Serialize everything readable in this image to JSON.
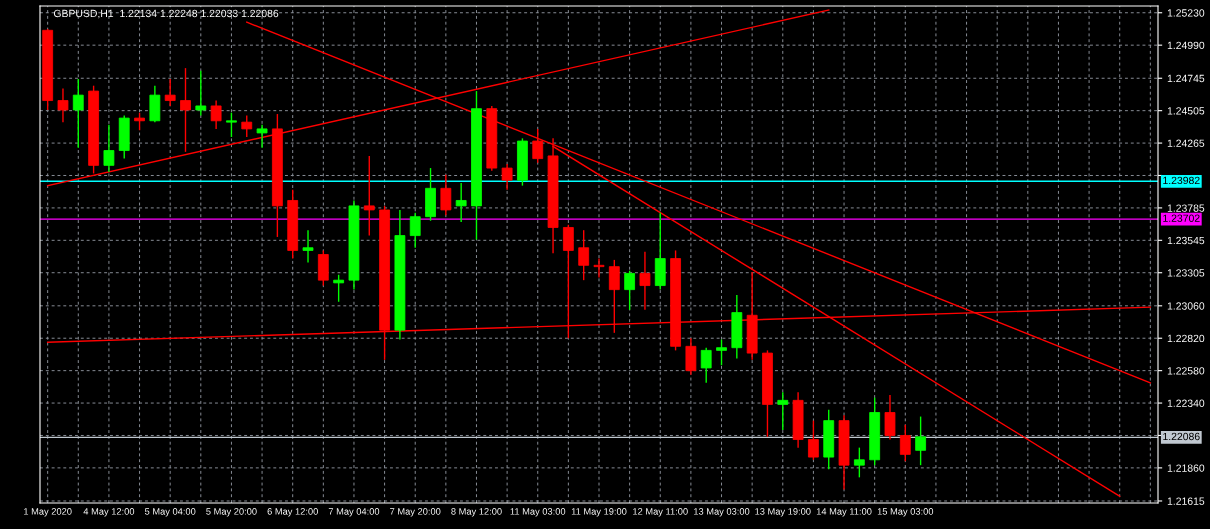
{
  "chart_data": {
    "type": "candlestick",
    "title": "GBPUSD,H1  1.22134 1.22248 1.22033 1.22086",
    "categories": [
      "1 May 2020",
      null,
      null,
      null,
      "4 May 12:00",
      null,
      null,
      null,
      "5 May 04:00",
      null,
      null,
      null,
      "5 May 20:00",
      null,
      null,
      null,
      "6 May 12:00",
      null,
      null,
      null,
      "7 May 04:00",
      null,
      null,
      null,
      "7 May 20:00",
      null,
      null,
      null,
      "8 May 12:00",
      null,
      null,
      null,
      "11 May 03:00",
      null,
      null,
      null,
      "11 May 19:00",
      null,
      null,
      null,
      "12 May 11:00",
      null,
      null,
      null,
      "13 May 03:00",
      null,
      null,
      null,
      "13 May 19:00",
      null,
      null,
      null,
      "14 May 11:00",
      null,
      null,
      null,
      "15 May 03:00",
      null,
      null,
      null,
      null,
      null,
      null,
      null,
      null,
      null,
      null,
      null,
      null,
      null,
      null,
      null,
      null
    ],
    "ohlc": [
      [
        1.251,
        1.2511,
        1.2451,
        1.2458
      ],
      [
        1.2458,
        1.2467,
        1.2442,
        1.2451
      ],
      [
        1.2451,
        1.2474,
        1.2423,
        1.2462
      ],
      [
        1.2465,
        1.2469,
        1.2404,
        1.241
      ],
      [
        1.241,
        1.244,
        1.2405,
        1.2421
      ],
      [
        1.2421,
        1.2447,
        1.2415,
        1.2445
      ],
      [
        1.2445,
        1.2449,
        1.2436,
        1.2443
      ],
      [
        1.2443,
        1.2469,
        1.2442,
        1.2462
      ],
      [
        1.2462,
        1.2474,
        1.2454,
        1.2458
      ],
      [
        1.2458,
        1.2482,
        1.242,
        1.2451
      ],
      [
        1.2451,
        1.248,
        1.2447,
        1.2454
      ],
      [
        1.2454,
        1.2458,
        1.2437,
        1.2443
      ],
      [
        1.2442,
        1.2449,
        1.2431,
        1.2443
      ],
      [
        1.2442,
        1.2447,
        1.2431,
        1.2437
      ],
      [
        1.2434,
        1.244,
        1.2423,
        1.2437
      ],
      [
        1.2437,
        1.2448,
        1.2357,
        1.238
      ],
      [
        1.2384,
        1.2392,
        1.2341,
        1.2347
      ],
      [
        1.2347,
        1.2362,
        1.2338,
        1.2349
      ],
      [
        1.2344,
        1.2347,
        1.2321,
        1.2325
      ],
      [
        1.2323,
        1.2329,
        1.2309,
        1.2325
      ],
      [
        1.2325,
        1.2384,
        1.2318,
        1.238
      ],
      [
        1.238,
        1.2417,
        1.2358,
        1.2377
      ],
      [
        1.2377,
        1.238,
        1.2266,
        1.2288
      ],
      [
        1.2288,
        1.2377,
        1.2281,
        1.2358
      ],
      [
        1.2358,
        1.2375,
        1.2349,
        1.2372
      ],
      [
        1.2372,
        1.2408,
        1.2369,
        1.2393
      ],
      [
        1.2393,
        1.2403,
        1.2373,
        1.2377
      ],
      [
        1.238,
        1.2397,
        1.2368,
        1.2384
      ],
      [
        1.238,
        1.2465,
        1.2355,
        1.2452
      ],
      [
        1.2452,
        1.2454,
        1.2406,
        1.2408
      ],
      [
        1.2408,
        1.2411,
        1.2392,
        1.2399
      ],
      [
        1.2399,
        1.243,
        1.2395,
        1.2428
      ],
      [
        1.2428,
        1.2437,
        1.2412,
        1.2415
      ],
      [
        1.2417,
        1.243,
        1.2345,
        1.2364
      ],
      [
        1.2364,
        1.2366,
        1.2282,
        1.2347
      ],
      [
        1.2349,
        1.2362,
        1.2325,
        1.2336
      ],
      [
        1.2336,
        1.2341,
        1.2327,
        1.2335
      ],
      [
        1.2335,
        1.234,
        1.2286,
        1.2318
      ],
      [
        1.2318,
        1.2332,
        1.2303,
        1.233
      ],
      [
        1.233,
        1.2346,
        1.2303,
        1.2321
      ],
      [
        1.2321,
        1.2375,
        1.2318,
        1.2341
      ],
      [
        1.2341,
        1.2347,
        1.2273,
        1.2276
      ],
      [
        1.2276,
        1.2282,
        1.2255,
        1.2258
      ],
      [
        1.226,
        1.2275,
        1.2249,
        1.2273
      ],
      [
        1.2273,
        1.2281,
        1.2262,
        1.2275
      ],
      [
        1.2275,
        1.2314,
        1.2267,
        1.2301
      ],
      [
        1.2299,
        1.2331,
        1.2266,
        1.2271
      ],
      [
        1.2271,
        1.2273,
        1.2209,
        1.2233
      ],
      [
        1.2233,
        1.2242,
        1.2214,
        1.2236
      ],
      [
        1.2236,
        1.2242,
        1.2201,
        1.2207
      ],
      [
        1.2207,
        1.2221,
        1.2192,
        1.2194
      ],
      [
        1.2194,
        1.2229,
        1.2185,
        1.2221
      ],
      [
        1.2221,
        1.2225,
        1.217,
        1.2188
      ],
      [
        1.2188,
        1.2201,
        1.2179,
        1.2192
      ],
      [
        1.2192,
        1.2238,
        1.2188,
        1.2227
      ],
      [
        1.2227,
        1.224,
        1.2207,
        1.221
      ],
      [
        1.221,
        1.2218,
        1.2191,
        1.2196
      ],
      [
        1.2199,
        1.2224,
        1.2188,
        1.2209
      ],
      null,
      null,
      null,
      null,
      null,
      null,
      null,
      null,
      null,
      null,
      null,
      null,
      null,
      null,
      null
    ],
    "colors": [
      "#ff0000",
      "#ff0000",
      "#00ff00",
      "#ff0000",
      "#00ff00",
      "#00ff00",
      "#ff0000",
      "#00ff00",
      "#ff0000",
      "#ff0000",
      "#00ff00",
      "#ff0000",
      "#00ff00",
      "#ff0000",
      "#00ff00",
      "#ff0000",
      "#ff0000",
      "#00ff00",
      "#ff0000",
      "#00ff00",
      "#00ff00",
      "#ff0000",
      "#ff0000",
      "#00ff00",
      "#00ff00",
      "#00ff00",
      "#ff0000",
      "#00ff00",
      "#00ff00",
      "#ff0000",
      "#ff0000",
      "#00ff00",
      "#ff0000",
      "#ff0000",
      "#ff0000",
      "#ff0000",
      "#ff0000",
      "#ff0000",
      "#00ff00",
      "#ff0000",
      "#00ff00",
      "#ff0000",
      "#ff0000",
      "#00ff00",
      "#00ff00",
      "#00ff00",
      "#ff0000",
      "#ff0000",
      "#00ff00",
      "#ff0000",
      "#ff0000",
      "#00ff00",
      "#ff0000",
      "#00ff00",
      "#00ff00",
      "#ff0000",
      "#ff0000",
      "#00ff00",
      null,
      null,
      null,
      null,
      null,
      null,
      null,
      null,
      null,
      null,
      null,
      null,
      null,
      null,
      null
    ],
    "series": [
      {
        "type": "line",
        "color": "#ff0000",
        "values": [
          1.2395,
          null,
          null,
          null,
          null,
          null,
          null,
          null,
          null,
          null,
          null,
          null,
          null,
          null,
          null,
          null,
          null,
          null,
          null,
          null,
          null,
          null,
          null,
          null,
          null,
          null,
          null,
          null,
          null,
          null,
          null,
          null,
          null,
          null,
          null,
          null,
          null,
          null,
          null,
          null,
          null,
          null,
          null,
          null,
          null,
          null,
          null,
          null,
          null,
          null,
          null,
          1.2525,
          null,
          null,
          null,
          null,
          null,
          null,
          null,
          null,
          null,
          null,
          null,
          null,
          null,
          null,
          null,
          null,
          null,
          null,
          null,
          null,
          null
        ]
      },
      {
        "type": "line",
        "color": "#ff0000",
        "values": [
          null,
          null,
          null,
          null,
          null,
          null,
          null,
          null,
          null,
          null,
          null,
          null,
          null,
          1.2516,
          null,
          null,
          null,
          null,
          null,
          null,
          null,
          null,
          null,
          null,
          null,
          null,
          null,
          null,
          null,
          null,
          null,
          null,
          null,
          null,
          null,
          null,
          null,
          null,
          null,
          null,
          null,
          null,
          null,
          null,
          null,
          null,
          null,
          null,
          null,
          null,
          null,
          null,
          null,
          null,
          null,
          null,
          null,
          null,
          null,
          null,
          null,
          null,
          null,
          null,
          null,
          null,
          null,
          null,
          null,
          null,
          null,
          null,
          1.2249
        ]
      },
      {
        "type": "line",
        "color": "#ff0000",
        "values": [
          null,
          null,
          null,
          null,
          null,
          null,
          null,
          null,
          null,
          null,
          null,
          null,
          null,
          null,
          null,
          null,
          null,
          null,
          null,
          null,
          null,
          null,
          null,
          null,
          null,
          null,
          null,
          null,
          null,
          null,
          null,
          null,
          null,
          1.2424,
          null,
          null,
          null,
          null,
          null,
          null,
          null,
          null,
          null,
          null,
          null,
          null,
          null,
          null,
          null,
          null,
          null,
          null,
          null,
          null,
          null,
          null,
          null,
          null,
          null,
          null,
          null,
          null,
          null,
          null,
          null,
          null,
          null,
          null,
          null,
          null,
          1.2165,
          null,
          null
        ]
      },
      {
        "type": "line",
        "color": "#ff0000",
        "values": [
          1.2279,
          null,
          null,
          null,
          null,
          null,
          null,
          null,
          null,
          null,
          null,
          null,
          null,
          null,
          null,
          null,
          null,
          null,
          null,
          null,
          null,
          null,
          null,
          null,
          null,
          null,
          null,
          null,
          null,
          null,
          null,
          null,
          null,
          null,
          null,
          null,
          null,
          null,
          null,
          null,
          null,
          null,
          null,
          null,
          null,
          null,
          null,
          null,
          null,
          null,
          null,
          null,
          null,
          null,
          null,
          null,
          null,
          null,
          null,
          null,
          null,
          null,
          null,
          null,
          null,
          null,
          null,
          null,
          null,
          null,
          null,
          null,
          1.2305
        ]
      }
    ],
    "ref_lines": [
      {
        "axis": "y",
        "value": 1.23982,
        "label": "1.23982",
        "color": "#00ffff"
      },
      {
        "axis": "y",
        "value": 1.23702,
        "label": "1.23702",
        "color": "#ff00ff"
      },
      {
        "axis": "y",
        "value": 1.22086,
        "label": "1.22086",
        "color": "#c0c8d0"
      }
    ],
    "ylim": [
      1.216,
      1.2528
    ],
    "yticks": [
      {
        "value": 1.2523,
        "label": "1.25230"
      },
      {
        "value": 1.2499,
        "label": "1.24990"
      },
      1.24745,
      1.24505,
      1.24265,
      {
        "value": 1.24025,
        "label": null
      },
      1.23785,
      1.23545,
      1.23305,
      {
        "value": 1.2306,
        "label": "1.23060"
      },
      {
        "value": 1.2282,
        "label": "1.22820"
      },
      {
        "value": 1.2258,
        "label": "1.22580"
      },
      {
        "value": 1.2234,
        "label": "1.22340"
      },
      {
        "value": 1.221,
        "label": null
      },
      {
        "value": 1.2186,
        "label": "1.21860"
      },
      1.21615
    ],
    "grid": true
  }
}
